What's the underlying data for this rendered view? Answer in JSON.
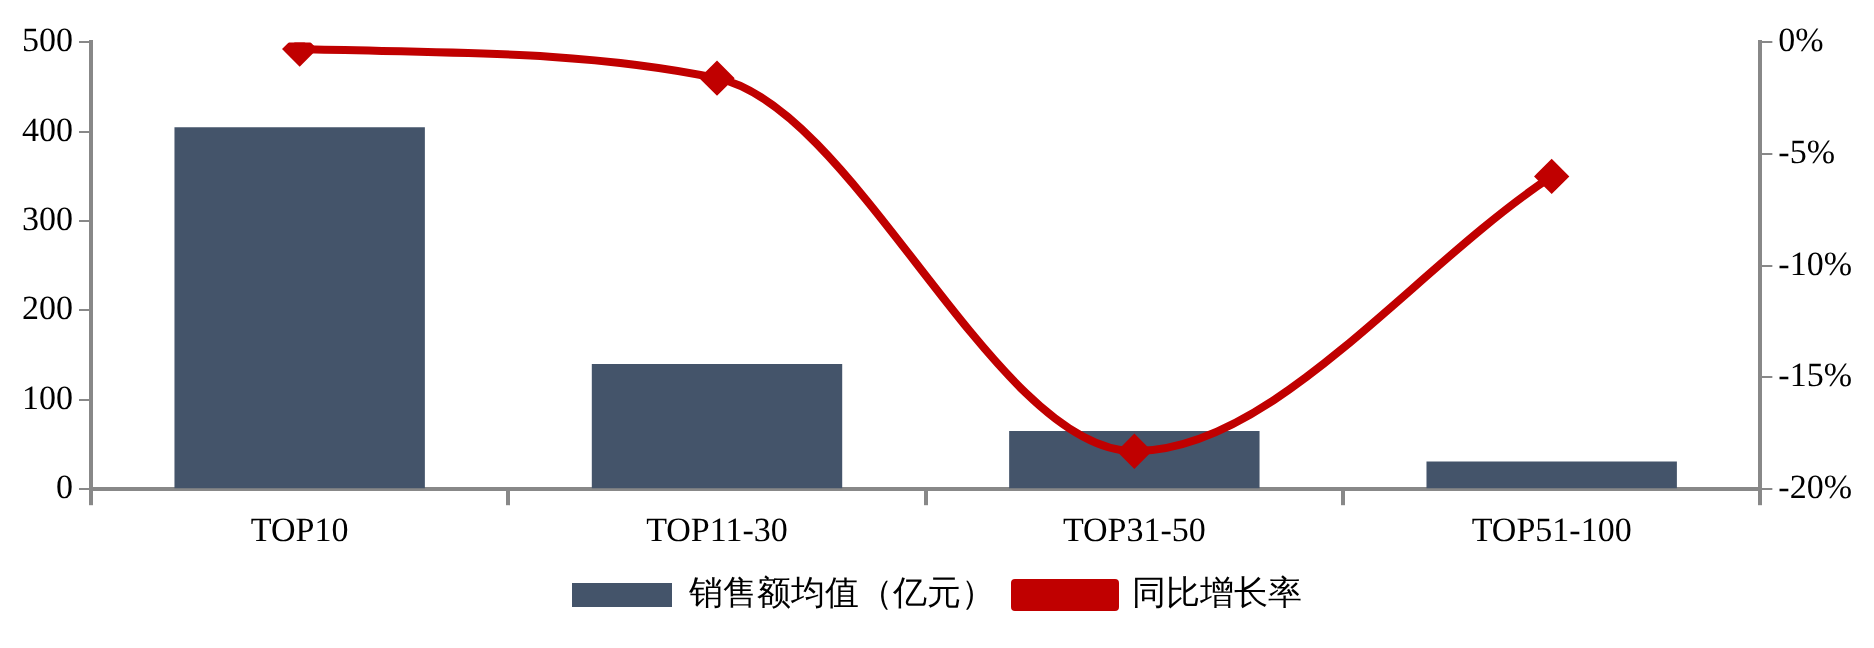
{
  "chart_data": {
    "type": "bar",
    "categories": [
      "TOP10",
      "TOP11-30",
      "TOP31-50",
      "TOP51-100"
    ],
    "series": [
      {
        "name": "销售额均值（亿元）",
        "color": "#44546a",
        "values": [
          405,
          140,
          65,
          31
        ]
      },
      {
        "name": "同比增长率",
        "type": "line",
        "axis": "y2",
        "color": "#c00000",
        "values": [
          -0.3,
          -1.6,
          -18.3,
          -6
        ],
        "marker": "diamond"
      }
    ],
    "ylim": [
      0,
      500
    ],
    "yticks": [
      0,
      100,
      200,
      300,
      400,
      500
    ],
    "y2lim": [
      -20,
      0
    ],
    "y2ticks": [
      {
        "value": -20,
        "label": "-20%"
      },
      {
        "value": -15,
        "label": "-15%"
      },
      {
        "value": -10,
        "label": "-10%"
      },
      {
        "value": -5,
        "label": "-5%"
      },
      {
        "value": 0,
        "label": "0%"
      }
    ],
    "grid": false,
    "legend": "bottom"
  }
}
